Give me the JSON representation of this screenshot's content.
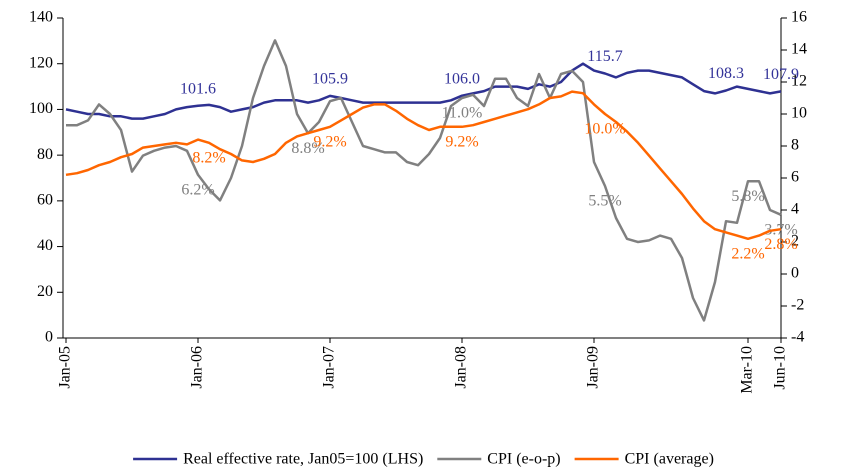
{
  "chart_data": {
    "type": "line",
    "categories": [
      "Jan-05",
      null,
      null,
      null,
      null,
      null,
      null,
      null,
      null,
      null,
      null,
      null,
      "Jan-06",
      null,
      null,
      null,
      null,
      null,
      null,
      null,
      null,
      null,
      null,
      null,
      "Jan-07",
      null,
      null,
      null,
      null,
      null,
      null,
      null,
      null,
      null,
      null,
      null,
      "Jan-08",
      null,
      null,
      null,
      null,
      null,
      null,
      null,
      null,
      null,
      null,
      null,
      "Jan-09",
      null,
      null,
      null,
      null,
      null,
      null,
      null,
      null,
      null,
      null,
      null,
      null,
      null,
      "Mar-10",
      null,
      null,
      "Jun-10"
    ],
    "series": [
      {
        "name": "Real effective rate, Jan05=100 (LHS)",
        "color": "#2e3192",
        "label_color": "#333399",
        "values": [
          100,
          99,
          98,
          98,
          97,
          97,
          96,
          96,
          97,
          98,
          100,
          101,
          101.6,
          102,
          101,
          99,
          100,
          101,
          103,
          104,
          104,
          104,
          103,
          104,
          105.9,
          105,
          104,
          103,
          103,
          103,
          103,
          103,
          103,
          103,
          103,
          104,
          106.0,
          107,
          108,
          110,
          110,
          110,
          109,
          111,
          110,
          112,
          117,
          120,
          117,
          115.7,
          114,
          116,
          117,
          117,
          116,
          115,
          114,
          111,
          108,
          107,
          108.3,
          110,
          109,
          108,
          107,
          107.9
        ],
        "value_labels": [
          null,
          null,
          null,
          null,
          null,
          null,
          null,
          null,
          null,
          null,
          null,
          null,
          "101.6",
          null,
          null,
          null,
          null,
          null,
          null,
          null,
          null,
          null,
          null,
          null,
          "105.9",
          null,
          null,
          null,
          null,
          null,
          null,
          null,
          null,
          null,
          null,
          null,
          "106.0",
          null,
          null,
          null,
          null,
          null,
          null,
          null,
          null,
          null,
          null,
          null,
          null,
          "115.7",
          null,
          null,
          null,
          null,
          null,
          null,
          null,
          null,
          null,
          null,
          "108.3",
          null,
          null,
          null,
          null,
          "107.9"
        ]
      },
      {
        "name": "CPI (e-o-p)",
        "color": "#808080",
        "axis": "y2",
        "values": [
          9.3,
          9.3,
          9.6,
          10.6,
          10,
          9,
          6.4,
          7.4,
          7.7,
          7.9,
          8,
          7.7,
          6.2,
          5.3,
          4.6,
          6,
          8,
          11,
          13,
          14.6,
          13,
          10,
          8.8,
          9.5,
          10.8,
          11,
          9.5,
          8,
          7.8,
          7.6,
          7.6,
          7,
          6.8,
          7.5,
          8.5,
          10.5,
          11.0,
          11.2,
          10.5,
          12.2,
          12.2,
          11,
          10.5,
          12.5,
          11,
          12.5,
          12.7,
          12,
          7,
          5.5,
          3.5,
          2.2,
          2,
          2.1,
          2.4,
          2.2,
          1,
          -1.5,
          -2.9,
          -0.5,
          3.3,
          3.2,
          5.8,
          5.8,
          4,
          3.7
        ],
        "value_labels": [
          null,
          null,
          null,
          null,
          null,
          null,
          null,
          null,
          null,
          null,
          null,
          null,
          "6.2%",
          null,
          null,
          null,
          null,
          null,
          null,
          null,
          null,
          null,
          "8.8%",
          null,
          null,
          null,
          null,
          null,
          null,
          null,
          null,
          null,
          null,
          null,
          null,
          null,
          "11.0%",
          null,
          null,
          null,
          null,
          null,
          null,
          null,
          null,
          null,
          null,
          null,
          null,
          "5.5%",
          null,
          null,
          null,
          null,
          null,
          null,
          null,
          null,
          null,
          null,
          null,
          null,
          "5.8%",
          null,
          null,
          "3.7%"
        ]
      },
      {
        "name": "CPI (average)",
        "color": "#ff6600",
        "axis": "y2",
        "values": [
          6.2,
          6.3,
          6.5,
          6.8,
          7,
          7.3,
          7.5,
          7.9,
          8,
          8.1,
          8.2,
          8.1,
          8.4,
          8.2,
          7.8,
          7.5,
          7.1,
          7,
          7.2,
          7.5,
          8.2,
          8.6,
          8.8,
          9,
          9.2,
          9.6,
          10,
          10.4,
          10.6,
          10.6,
          10.2,
          9.7,
          9.3,
          9,
          9.2,
          9.2,
          9.2,
          9.3,
          9.5,
          9.7,
          9.9,
          10.1,
          10.3,
          10.6,
          11,
          11.1,
          11.4,
          11.3,
          10.6,
          10.0,
          9.5,
          8.9,
          8.2,
          7.4,
          6.6,
          5.8,
          5,
          4.1,
          3.3,
          2.8,
          2.6,
          2.4,
          2.2,
          2.4,
          2.7,
          2.8
        ],
        "value_labels": [
          null,
          null,
          null,
          null,
          null,
          null,
          null,
          null,
          null,
          null,
          null,
          null,
          null,
          "8.2%",
          null,
          null,
          null,
          null,
          null,
          null,
          null,
          null,
          null,
          null,
          "9.2%",
          null,
          null,
          null,
          null,
          null,
          null,
          null,
          null,
          null,
          null,
          null,
          "9.2%",
          null,
          null,
          null,
          null,
          null,
          null,
          null,
          null,
          null,
          null,
          null,
          null,
          "10.0%",
          null,
          null,
          null,
          null,
          null,
          null,
          null,
          null,
          null,
          null,
          null,
          null,
          "2.2%",
          null,
          null,
          "2.8%"
        ]
      }
    ],
    "ylim": [
      0,
      140
    ],
    "yticks": [
      0,
      20,
      40,
      60,
      80,
      100,
      120,
      140
    ],
    "y2lim": [
      -4,
      16
    ],
    "y2ticks": [
      -4,
      -2,
      0,
      2,
      4,
      6,
      8,
      10,
      12,
      14,
      16
    ],
    "legend": "bottom"
  }
}
